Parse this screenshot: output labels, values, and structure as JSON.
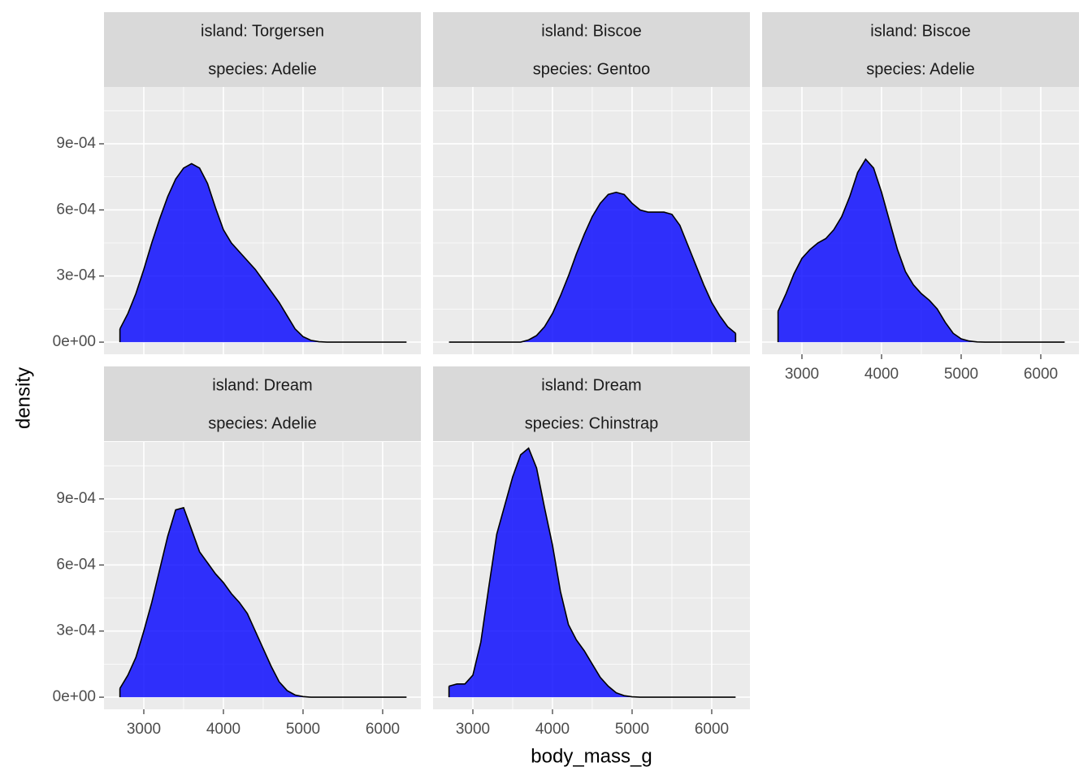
{
  "chart_data": {
    "type": "area",
    "xlabel": "body_mass_g",
    "ylabel": "density",
    "color": "#0000FF",
    "alpha": 0.8,
    "outline": "#000000",
    "xlim": [
      2500,
      6480
    ],
    "ylim": [
      -5.5e-05,
      0.001158
    ],
    "xticks": [
      3000,
      4000,
      5000,
      6000
    ],
    "yticks": [
      {
        "value": 0,
        "label": "0e+00"
      },
      {
        "value": 0.0003,
        "label": "3e-04"
      },
      {
        "value": 0.0006,
        "label": "6e-04"
      },
      {
        "value": 0.0009,
        "label": "9e-04"
      }
    ],
    "grid": true,
    "x": [
      2700,
      2800,
      2900,
      3000,
      3100,
      3200,
      3300,
      3400,
      3500,
      3600,
      3700,
      3800,
      3900,
      4000,
      4100,
      4200,
      4300,
      4400,
      4500,
      4600,
      4700,
      4800,
      4900,
      5000,
      5100,
      5200,
      5300,
      5400,
      5500,
      5600,
      5700,
      5800,
      5900,
      6000,
      6100,
      6200,
      6300
    ],
    "facets": [
      {
        "strip": [
          "island: Torgersen",
          "species: Adelie"
        ],
        "values": [
          6e-05,
          0.00013,
          0.00022,
          0.00033,
          0.00045,
          0.00056,
          0.00066,
          0.00074,
          0.00079,
          0.00081,
          0.00079,
          0.00072,
          0.00061,
          0.00051,
          0.00045,
          0.00041,
          0.00037,
          0.00033,
          0.00028,
          0.00023,
          0.00018,
          0.00012,
          6e-05,
          2.5e-05,
          8e-06,
          2e-06,
          0,
          0,
          0,
          0,
          0,
          0,
          0,
          0,
          0,
          0,
          0
        ]
      },
      {
        "strip": [
          "island: Biscoe",
          "species: Gentoo"
        ],
        "values": [
          0,
          0,
          0,
          0,
          0,
          0,
          0,
          0,
          0,
          0,
          1e-05,
          3e-05,
          7e-05,
          0.00013,
          0.00021,
          0.0003,
          0.0004,
          0.00049,
          0.00057,
          0.00063,
          0.00067,
          0.00068,
          0.00067,
          0.00063,
          0.0006,
          0.00059,
          0.00059,
          0.00059,
          0.00058,
          0.00053,
          0.00044,
          0.00035,
          0.00026,
          0.00018,
          0.00012,
          7e-05,
          4e-05
        ]
      },
      {
        "strip": [
          "island: Biscoe",
          "species: Adelie"
        ],
        "values": [
          0.00014,
          0.00022,
          0.00031,
          0.00038,
          0.00042,
          0.00045,
          0.00047,
          0.00051,
          0.00057,
          0.00066,
          0.00077,
          0.00083,
          0.00079,
          0.00068,
          0.00055,
          0.00042,
          0.00032,
          0.00026,
          0.00022,
          0.00019,
          0.00015,
          9e-05,
          4e-05,
          1.5e-05,
          5e-06,
          1e-06,
          0,
          0,
          0,
          0,
          0,
          0,
          0,
          0,
          0,
          0,
          0
        ]
      },
      {
        "strip": [
          "island: Dream",
          "species: Adelie"
        ],
        "values": [
          4e-05,
          0.0001,
          0.00018,
          0.0003,
          0.00043,
          0.00058,
          0.00073,
          0.00085,
          0.00086,
          0.00076,
          0.00066,
          0.00061,
          0.00056,
          0.00052,
          0.00047,
          0.00043,
          0.00038,
          0.0003,
          0.00022,
          0.00014,
          7e-05,
          3e-05,
          1e-05,
          3e-06,
          0,
          0,
          0,
          0,
          0,
          0,
          0,
          0,
          0,
          0,
          0,
          0,
          0
        ]
      },
      {
        "strip": [
          "island: Dream",
          "species: Chinstrap"
        ],
        "values": [
          5e-05,
          6e-05,
          6e-05,
          0.0001,
          0.00025,
          0.0005,
          0.00074,
          0.00087,
          0.001,
          0.0011,
          0.00113,
          0.00104,
          0.00086,
          0.00069,
          0.00048,
          0.00033,
          0.00026,
          0.00021,
          0.00015,
          9e-05,
          5e-05,
          2e-05,
          7e-06,
          2e-06,
          0,
          0,
          0,
          0,
          0,
          0,
          0,
          0,
          0,
          0,
          0,
          0,
          0
        ]
      }
    ]
  }
}
